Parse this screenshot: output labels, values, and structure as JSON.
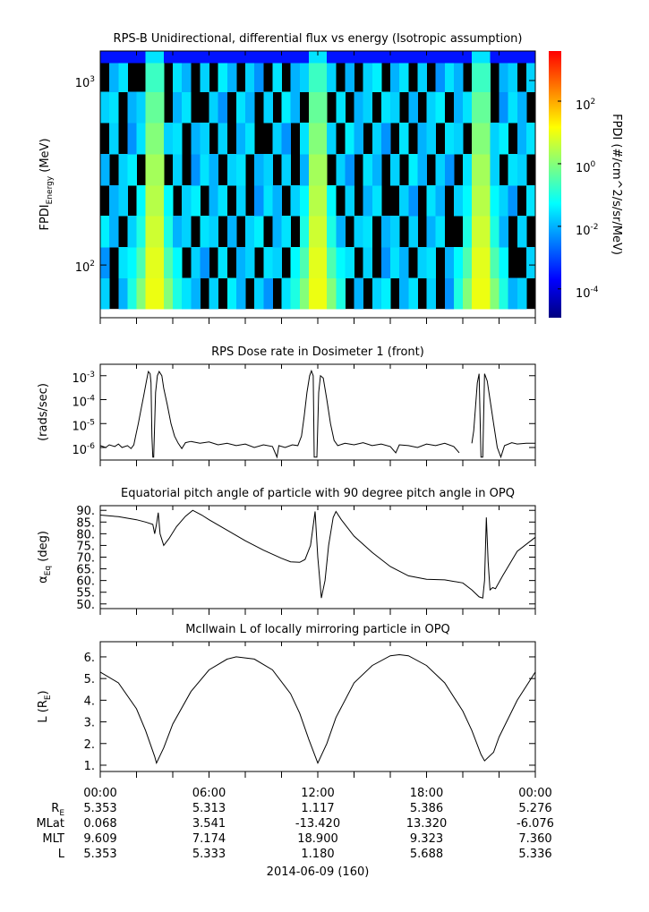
{
  "chart_data": [
    {
      "type": "heatmap",
      "title": "RPS-B  Unidirectional, differential flux vs energy (Isotropic assumption)",
      "ylabel": [
        "FPDI",
        "Energy",
        " (MeV)"
      ],
      "xlim": [
        0,
        24
      ],
      "xticks": [
        0,
        2,
        4,
        6,
        8,
        10,
        12,
        14,
        16,
        18,
        20,
        22,
        24
      ],
      "ylog": true,
      "ylim": [
        51.8,
        1445
      ],
      "yticks": [
        {
          "value": 100,
          "label": [
            "10",
            "2"
          ]
        },
        {
          "value": 1000,
          "label": [
            "10",
            "3"
          ]
        }
      ],
      "x_bins": [
        0,
        0.5,
        1,
        1.5,
        2,
        2.5,
        3,
        3.5,
        4,
        4.5,
        5,
        5.5,
        6,
        6.5,
        7,
        7.5,
        8,
        8.5,
        9,
        9.5,
        10,
        10.5,
        11,
        11.5,
        12,
        12.5,
        13,
        13.5,
        14,
        14.5,
        15,
        15.5,
        16,
        16.5,
        17,
        17.5,
        18,
        18.5,
        19,
        19.5,
        20,
        20.5,
        21,
        21.5,
        22,
        22.5,
        23,
        23.5,
        24
      ],
      "energy_bins": [
        57.8,
        85,
        125,
        185,
        270,
        400,
        590,
        870,
        1250,
        1445
      ],
      "z": [
        [
          0.02,
          null,
          0.01,
          0.1,
          1,
          10,
          10,
          1,
          0.1,
          0.03,
          0.01,
          null,
          0.02,
          null,
          0.04,
          0.01,
          null,
          0.02,
          0.005,
          null,
          0.03,
          0.1,
          1,
          10,
          10,
          1,
          0.1,
          null,
          0.01,
          null,
          0.02,
          0.04,
          null,
          0.01,
          0.03,
          null,
          0.02,
          null,
          0.005,
          0.1,
          1,
          10,
          10,
          1,
          0.1,
          0.01,
          0.02,
          null
        ],
        [
          0.005,
          null,
          0.03,
          0.05,
          0.3,
          8,
          8,
          0.3,
          0.05,
          null,
          0.02,
          0.005,
          null,
          0.03,
          null,
          0.01,
          0.02,
          null,
          0.03,
          0.02,
          null,
          0.05,
          0.3,
          8,
          8,
          0.3,
          0.05,
          0.03,
          null,
          0.02,
          null,
          0.005,
          0.03,
          0.01,
          null,
          0.02,
          0.03,
          null,
          0.01,
          0.05,
          0.3,
          8,
          8,
          0.3,
          0.05,
          null,
          null,
          0.02
        ],
        [
          0.04,
          0.01,
          null,
          0.02,
          0.1,
          5,
          5,
          0.1,
          0.01,
          0.02,
          null,
          0.03,
          0.02,
          null,
          0.01,
          null,
          0.02,
          0.04,
          null,
          0.01,
          0.03,
          null,
          0.1,
          5,
          5,
          0.1,
          0.01,
          null,
          0.02,
          0.03,
          null,
          0.01,
          0.02,
          null,
          0.02,
          null,
          0.01,
          0.03,
          null,
          null,
          0.1,
          5,
          5,
          0.1,
          0.01,
          null,
          0.02,
          null
        ],
        [
          null,
          0.01,
          0.02,
          null,
          0.05,
          3,
          3,
          0.05,
          null,
          0.02,
          0.04,
          null,
          0.01,
          0.03,
          null,
          0.02,
          null,
          0.005,
          0.03,
          0.01,
          null,
          0.02,
          0.05,
          3,
          3,
          0.05,
          null,
          0.02,
          null,
          0.01,
          0.03,
          null,
          null,
          0.02,
          0.005,
          null,
          0.03,
          0.01,
          null,
          0.02,
          0.05,
          3,
          3,
          0.05,
          0.02,
          0.005,
          null,
          0.03
        ],
        [
          0.01,
          null,
          0.02,
          0.04,
          null,
          2,
          2,
          null,
          0.02,
          null,
          0.005,
          0.03,
          0.01,
          null,
          0.02,
          0.03,
          null,
          0.01,
          0.02,
          null,
          0.02,
          null,
          0.01,
          2,
          2,
          null,
          0.02,
          0.005,
          null,
          0.03,
          0.01,
          null,
          0.02,
          null,
          0.04,
          0.01,
          null,
          0.02,
          0.005,
          null,
          0.03,
          2,
          2,
          0.02,
          null,
          0.03,
          0.02,
          null
        ],
        [
          null,
          0.02,
          null,
          0.005,
          0.03,
          1,
          1,
          0.02,
          0.03,
          null,
          0.01,
          0.02,
          null,
          0.02,
          null,
          0.01,
          0.03,
          null,
          null,
          0.02,
          0.005,
          null,
          0.03,
          1,
          1,
          0.02,
          null,
          0.04,
          0.01,
          null,
          0.02,
          0.005,
          null,
          0.03,
          null,
          0.01,
          0.02,
          null,
          0.03,
          0.02,
          null,
          1,
          1,
          0.02,
          0.04,
          null,
          0.01,
          0.03
        ],
        [
          0.02,
          0.03,
          null,
          0.01,
          0.02,
          0.5,
          0.5,
          null,
          0.01,
          0.03,
          null,
          null,
          0.02,
          0.005,
          null,
          0.03,
          0.01,
          null,
          0.02,
          null,
          0.04,
          0.01,
          null,
          0.5,
          0.5,
          null,
          0.03,
          null,
          0.01,
          0.02,
          null,
          0.03,
          0.02,
          null,
          0.01,
          null,
          0.02,
          0.04,
          null,
          0.01,
          0.03,
          0.5,
          0.5,
          null,
          0.005,
          0.03,
          0.01,
          null
        ],
        [
          null,
          0.01,
          0.03,
          null,
          null,
          0.2,
          0.2,
          null,
          0.03,
          0.01,
          null,
          0.02,
          null,
          0.04,
          0.01,
          null,
          0.02,
          0.005,
          null,
          0.03,
          null,
          0.01,
          0.02,
          0.2,
          0.2,
          0.02,
          null,
          0.01,
          null,
          0.02,
          0.04,
          null,
          0.01,
          0.03,
          null,
          0.02,
          null,
          0.005,
          0.03,
          0.01,
          null,
          0.2,
          0.2,
          null,
          0.01,
          0.02,
          null,
          0.02
        ],
        [
          0.0003,
          0.0003,
          0.0003,
          0.0003,
          0.0003,
          0.03,
          0.03,
          0.0003,
          0.0003,
          0.0003,
          0.0003,
          0.0003,
          0.0003,
          0.0003,
          0.0003,
          0.0003,
          0.0003,
          0.0003,
          0.0003,
          0.0003,
          0.0003,
          0.0003,
          0.0003,
          0.03,
          0.03,
          0.0003,
          0.0003,
          0.0003,
          0.0003,
          0.0003,
          0.0003,
          0.0003,
          0.0003,
          0.0003,
          0.0003,
          0.0003,
          0.0003,
          0.0003,
          0.0003,
          0.0003,
          0.0003,
          0.03,
          0.03,
          0.0003,
          0.0003,
          0.0003,
          0.0003,
          0.0003
        ]
      ],
      "colorbar": {
        "label": "FPDI (#/cm^2/s/sr/MeV)",
        "log": true,
        "lim": [
          1.2e-05,
          4000
        ],
        "ticks": [
          {
            "value": 0.0001,
            "label": [
              "10",
              "-4"
            ]
          },
          {
            "value": 0.01,
            "label": [
              "10",
              "-2"
            ]
          },
          {
            "value": 1,
            "label": [
              "10",
              "0"
            ]
          },
          {
            "value": 100,
            "label": [
              "10",
              "2"
            ]
          }
        ],
        "colormap": [
          "#00007f",
          "#0000ff",
          "#007fff",
          "#00ffff",
          "#7fff7f",
          "#ffff00",
          "#ff7f00",
          "#ff0000"
        ]
      }
    },
    {
      "type": "line",
      "title": "RPS  Dose rate in Dosimeter 1 (front)",
      "ylabel": [
        "(rads/sec)"
      ],
      "xlim": [
        0,
        24
      ],
      "xticks": [
        0,
        2,
        4,
        6,
        8,
        10,
        12,
        14,
        16,
        18,
        20,
        22,
        24
      ],
      "ylog": true,
      "ylim": [
        3e-07,
        0.003
      ],
      "yticks": [
        {
          "value": 1e-06,
          "label": [
            "10",
            "-6"
          ]
        },
        {
          "value": 1e-05,
          "label": [
            "10",
            "-5"
          ]
        },
        {
          "value": 0.0001,
          "label": [
            "10",
            "-4"
          ]
        },
        {
          "value": 0.001,
          "label": [
            "10",
            "-3"
          ]
        }
      ],
      "color": "#000000",
      "x": [
        0,
        0.3,
        0.5,
        0.8,
        1.0,
        1.2,
        1.5,
        1.7,
        1.85,
        1.95,
        2.1,
        2.25,
        2.4,
        2.55,
        2.65,
        2.75,
        2.8,
        2.85,
        2.9,
        2.95,
        3.05,
        3.15,
        3.25,
        3.4,
        3.5,
        3.7,
        3.9,
        4.1,
        4.3,
        4.5,
        4.7,
        5,
        5.5,
        6,
        6.5,
        7,
        7.5,
        8,
        8.5,
        9,
        9.5,
        9.75,
        9.85,
        10.2,
        10.6,
        10.9,
        11.1,
        11.25,
        11.4,
        11.55,
        11.65,
        11.75,
        11.8,
        11.95,
        12.05,
        12.15,
        12.3,
        12.5,
        12.7,
        12.9,
        13.1,
        13.5,
        14,
        14.5,
        15,
        15.5,
        16,
        16.3,
        16.5,
        17,
        17.5,
        18,
        18.5,
        19,
        19.5,
        19.8,
        20.0,
        20.5,
        20.6,
        20.7,
        20.8,
        20.9,
        21.0,
        21.1,
        21.2,
        21.35,
        21.5,
        21.7,
        21.9,
        22.1,
        22.3,
        22.7,
        23.0,
        23.5,
        24
      ],
      "values": [
        1.2e-06,
        1e-06,
        1.3e-06,
        1.1e-06,
        1.4e-06,
        1e-06,
        1.2e-06,
        9e-07,
        1.3e-06,
        3e-06,
        1e-05,
        4e-05,
        0.00015,
        0.0006,
        0.0015,
        0.0012,
        0.0005,
        3e-06,
        4e-07,
        4e-07,
        0.0002,
        0.001,
        0.0015,
        0.001,
        0.0003,
        6e-05,
        1e-05,
        3e-06,
        1.5e-06,
        9e-07,
        1.6e-06,
        1.8e-06,
        1.5e-06,
        1.7e-06,
        1.3e-06,
        1.5e-06,
        1.2e-06,
        1.4e-06,
        1e-06,
        1.3e-06,
        1.1e-06,
        4e-07,
        1.2e-06,
        1e-06,
        1.3e-06,
        1.2e-06,
        3e-06,
        2e-05,
        0.0002,
        0.001,
        0.0016,
        0.001,
        4e-07,
        4e-07,
        0.0002,
        0.001,
        0.0008,
        0.0001,
        1e-05,
        2e-06,
        1.2e-06,
        1.5e-06,
        1.3e-06,
        1.6e-06,
        1.2e-06,
        1.4e-06,
        1.1e-06,
        6e-07,
        1.3e-06,
        1.2e-06,
        1e-06,
        1.4e-06,
        1.2e-06,
        1.5e-06,
        1.1e-06,
        6e-07,
        null,
        1.5e-06,
        5e-06,
        5e-05,
        0.0005,
        0.0012,
        4e-07,
        4e-07,
        0.0012,
        0.0006,
        0.0001,
        1e-05,
        1e-06,
        4e-07,
        1.2e-06,
        1.6e-06,
        1.4e-06,
        1.5e-06,
        1.5e-06
      ]
    },
    {
      "type": "line",
      "title": "Equatorial pitch angle of particle with 90 degree pitch angle in OPQ",
      "ylabel": [
        "α",
        "Eq",
        " (deg)"
      ],
      "xlim": [
        0,
        24
      ],
      "xticks": [
        0,
        2,
        4,
        6,
        8,
        10,
        12,
        14,
        16,
        18,
        20,
        22,
        24
      ],
      "ylim": [
        48,
        92
      ],
      "yticks": [
        {
          "value": 50,
          "label": "50."
        },
        {
          "value": 55,
          "label": "55."
        },
        {
          "value": 60,
          "label": "60."
        },
        {
          "value": 65,
          "label": "65."
        },
        {
          "value": 70,
          "label": "70."
        },
        {
          "value": 75,
          "label": "75."
        },
        {
          "value": 80,
          "label": "80."
        },
        {
          "value": 85,
          "label": "85."
        },
        {
          "value": 90,
          "label": "90."
        }
      ],
      "color": "#000000",
      "x": [
        0,
        1,
        2,
        2.5,
        2.9,
        3.0,
        3.1,
        3.2,
        3.3,
        3.5,
        3.8,
        4.2,
        4.7,
        5.1,
        5.6,
        6,
        7,
        8,
        9,
        10,
        10.5,
        11,
        11.3,
        11.6,
        11.85,
        12.0,
        12.2,
        12.4,
        12.6,
        12.85,
        13.0,
        13.3,
        14,
        15,
        16,
        17,
        18,
        19,
        20,
        20.5,
        20.9,
        21.1,
        21.2,
        21.3,
        21.4,
        21.5,
        21.65,
        21.8,
        22.2,
        23,
        24
      ],
      "values": [
        88,
        87.3,
        86,
        85,
        84,
        80,
        84,
        89,
        80,
        75,
        78,
        83,
        87.5,
        90,
        88,
        86,
        81.5,
        77,
        73,
        69.5,
        68,
        67.8,
        69,
        75,
        89.5,
        70,
        52.5,
        60,
        75,
        87,
        89.5,
        86,
        79,
        72,
        66,
        62,
        60.5,
        60.3,
        59,
        56,
        53,
        52.5,
        60,
        87,
        68,
        56,
        57,
        56.5,
        62,
        72.5,
        78.5
      ]
    },
    {
      "type": "line",
      "title": "McIlwain L of locally mirroring particle in OPQ",
      "ylabel": [
        "L (R",
        "E",
        ")"
      ],
      "xlim": [
        0,
        24
      ],
      "xticks": [
        0,
        2,
        4,
        6,
        8,
        10,
        12,
        14,
        16,
        18,
        20,
        22,
        24
      ],
      "ylim": [
        0.71,
        6.7
      ],
      "yticks": [
        {
          "value": 1,
          "label": "1."
        },
        {
          "value": 2,
          "label": "2."
        },
        {
          "value": 3,
          "label": "3."
        },
        {
          "value": 4,
          "label": "4."
        },
        {
          "value": 5,
          "label": "5."
        },
        {
          "value": 6,
          "label": "6."
        }
      ],
      "color": "#000000",
      "x": [
        0,
        1,
        2,
        2.5,
        3,
        3.1,
        3.5,
        4,
        5,
        6,
        7,
        7.5,
        8.5,
        9.5,
        10.5,
        11,
        11.5,
        12,
        12.5,
        13,
        14,
        15,
        16,
        16.5,
        17,
        18,
        19,
        20,
        20.5,
        21,
        21.2,
        21.7,
        22,
        23,
        24
      ],
      "values": [
        5.3,
        4.8,
        3.6,
        2.6,
        1.4,
        1.1,
        1.8,
        2.9,
        4.4,
        5.4,
        5.9,
        6.0,
        5.9,
        5.4,
        4.3,
        3.4,
        2.2,
        1.1,
        2.0,
        3.2,
        4.8,
        5.6,
        6.05,
        6.1,
        6.05,
        5.6,
        4.8,
        3.5,
        2.6,
        1.5,
        1.2,
        1.6,
        2.3,
        4.0,
        5.3
      ]
    }
  ],
  "time_axis": {
    "ticks": [
      {
        "value": 0,
        "label": "00:00"
      },
      {
        "value": 6,
        "label": "06:00"
      },
      {
        "value": 12,
        "label": "12:00"
      },
      {
        "value": 18,
        "label": "18:00"
      },
      {
        "value": 24,
        "label": "00:00"
      }
    ],
    "rows": [
      {
        "label": [
          "R",
          "E"
        ],
        "values": [
          "5.353",
          "5.313",
          "1.117",
          "5.386",
          "5.276"
        ]
      },
      {
        "label": [
          "MLat"
        ],
        "values": [
          "0.068",
          "3.541",
          "-13.420",
          "13.320",
          "-6.076"
        ]
      },
      {
        "label": [
          "MLT"
        ],
        "values": [
          "9.609",
          "7.174",
          "18.900",
          "9.323",
          "7.360"
        ]
      },
      {
        "label": [
          "L"
        ],
        "values": [
          "5.353",
          "5.333",
          "1.180",
          "5.688",
          "5.336"
        ]
      }
    ],
    "date": "2014-06-09 (160)"
  }
}
